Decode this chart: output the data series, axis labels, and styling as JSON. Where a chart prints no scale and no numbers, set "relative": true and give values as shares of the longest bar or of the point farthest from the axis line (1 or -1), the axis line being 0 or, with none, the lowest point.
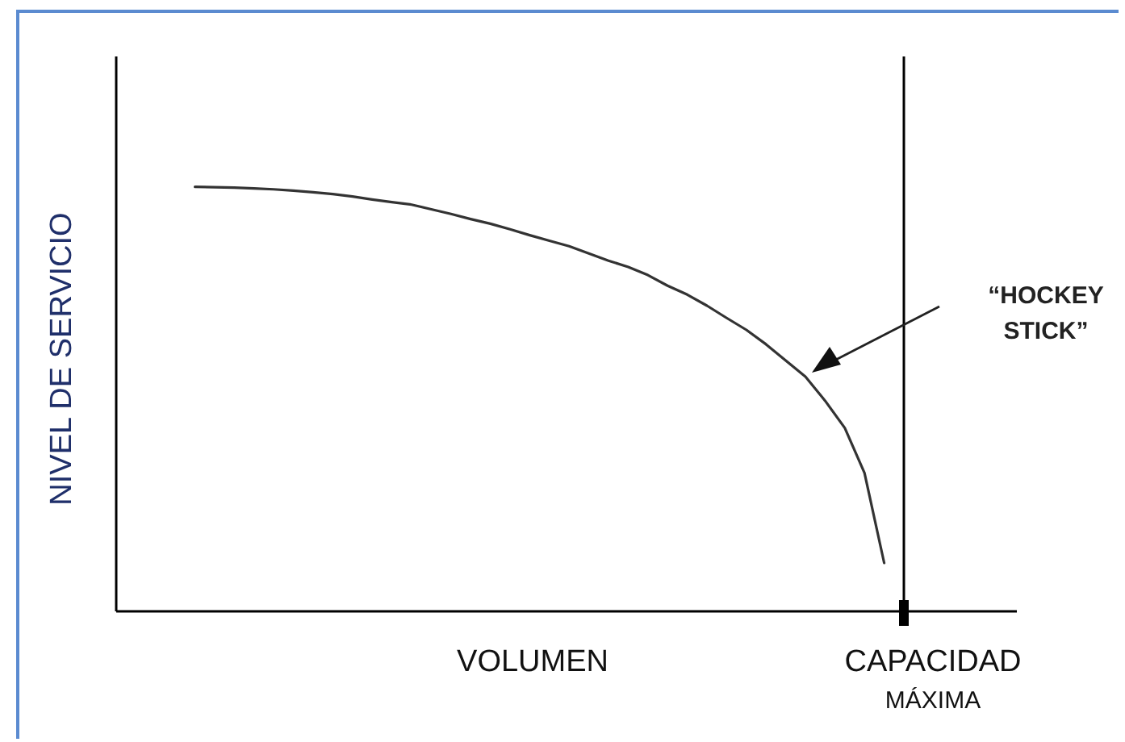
{
  "chart_data": {
    "type": "line",
    "relative": true,
    "xlabel": "VOLUMEN",
    "ylabel": "NIVEL DE SERVICIO",
    "marker": "none",
    "line_style": "solid",
    "categories": [
      null,
      null,
      null,
      null,
      null,
      null,
      null,
      null,
      null,
      null,
      null,
      null,
      null,
      null,
      null,
      null,
      null,
      null,
      null,
      null,
      null,
      null,
      null,
      null,
      null,
      null,
      null,
      null,
      null,
      null,
      null,
      null,
      null,
      null,
      null,
      null,
      null,
      null,
      null,
      null,
      null
    ],
    "series": [
      {
        "color": "#333333",
        "values": [
          null,
          null,
          null,
          null,
          1.0,
          0.999,
          0.998,
          0.996,
          0.994,
          0.991,
          0.987,
          0.983,
          0.977,
          0.97,
          0.964,
          0.958,
          0.947,
          0.936,
          0.924,
          0.913,
          0.9,
          0.886,
          0.873,
          0.86,
          0.843,
          0.826,
          0.811,
          0.792,
          0.767,
          0.746,
          0.72,
          0.691,
          0.663,
          0.629,
          0.591,
          0.553,
          0.496,
          0.432,
          0.326,
          0.114,
          null
        ]
      }
    ],
    "annotations": [
      "CAPACIDAD MÁXIMA",
      "“HOCKEY STICK”"
    ]
  }
}
